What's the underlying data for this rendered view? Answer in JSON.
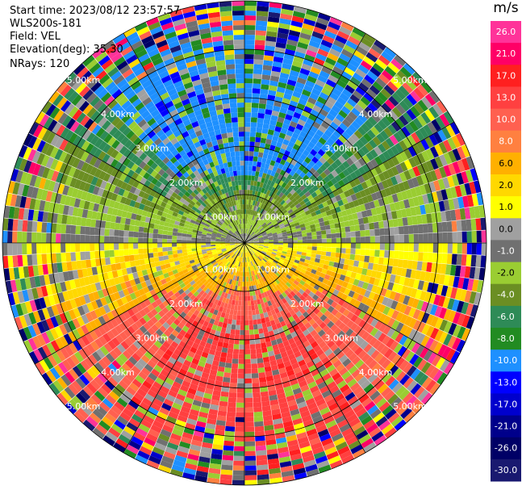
{
  "info": {
    "start_time": "Start time: 2023/08/12 23:57:57",
    "site": "WLS200s-181",
    "field": "Field: VEL",
    "elevation": "Elevation(deg): 35.30",
    "nrays": "NRays: 120"
  },
  "ring_labels": [
    "1.00km",
    "2.00km",
    "3.00km",
    "4.00km",
    "5.00km"
  ],
  "colorbar": {
    "unit": "m/s",
    "ticks": [
      "26.0",
      "21.0",
      "17.0",
      "13.0",
      "10.0",
      "8.0",
      "6.0",
      "2.0",
      "1.0",
      "0.0",
      "-1.0",
      "-2.0",
      "-4.0",
      "-6.0",
      "-8.0",
      "-10.0",
      "-13.0",
      "-17.0",
      "-21.0",
      "-26.0",
      "-30.0"
    ],
    "colors": [
      "#ff3399",
      "#ff0066",
      "#ff2020",
      "#ff4040",
      "#ff6050",
      "#ff8040",
      "#ffb000",
      "#ffd800",
      "#ffff00",
      "#a0a0a0",
      "#707070",
      "#9acd32",
      "#6b8e23",
      "#2e8b57",
      "#228b22",
      "#1e90ff",
      "#0000ff",
      "#0000cd",
      "#00008b",
      "#000066",
      "#191970"
    ]
  }
}
